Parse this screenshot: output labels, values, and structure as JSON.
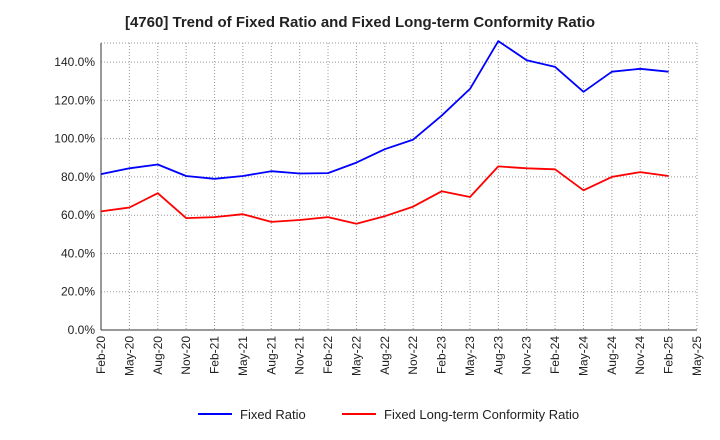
{
  "chart_data": {
    "type": "line",
    "title": "[4760]  Trend of Fixed Ratio and Fixed Long-term Conformity Ratio",
    "xlabel": "",
    "ylabel": "",
    "ylim": [
      0,
      150
    ],
    "y_ticks": [
      0,
      20,
      40,
      60,
      80,
      100,
      120,
      140
    ],
    "y_tick_labels": [
      "0.0%",
      "20.0%",
      "40.0%",
      "60.0%",
      "80.0%",
      "100.0%",
      "120.0%",
      "140.0%"
    ],
    "x_tick_labels": [
      "Feb-20",
      "May-20",
      "Aug-20",
      "Nov-20",
      "Feb-21",
      "May-21",
      "Aug-21",
      "Nov-21",
      "Feb-22",
      "May-22",
      "Aug-22",
      "Nov-22",
      "Feb-23",
      "May-23",
      "Aug-23",
      "Nov-23",
      "Feb-24",
      "May-24",
      "Aug-24",
      "Nov-24",
      "Feb-25",
      "May-25"
    ],
    "grid": true,
    "legend_position": "bottom",
    "categories": [
      "Feb-20",
      "May-20",
      "Aug-20",
      "Nov-20",
      "Feb-21",
      "May-21",
      "Aug-21",
      "Nov-21",
      "Feb-22",
      "May-22",
      "Aug-22",
      "Nov-22",
      "Feb-23",
      "May-23",
      "Aug-23",
      "Nov-23",
      "Feb-24",
      "May-24",
      "Aug-24",
      "Nov-24",
      "Feb-25",
      "May-25"
    ],
    "series": [
      {
        "name": "Fixed Ratio",
        "color": "#0000ff",
        "values": [
          81.5,
          84.5,
          86.5,
          80.5,
          79,
          80.5,
          83,
          81.8,
          82,
          87.5,
          94.5,
          99.5,
          112,
          126,
          151,
          141,
          137.5,
          124.5,
          135,
          136.5,
          135,
          null
        ]
      },
      {
        "name": "Fixed Long-term Conformity Ratio",
        "color": "#ff0000",
        "values": [
          62,
          64,
          71.5,
          58.5,
          59,
          60.5,
          56.5,
          57.5,
          59,
          55.5,
          59.5,
          64.5,
          72.5,
          69.5,
          85.5,
          84.5,
          84,
          73,
          80,
          82.5,
          80.5,
          null
        ]
      }
    ]
  }
}
